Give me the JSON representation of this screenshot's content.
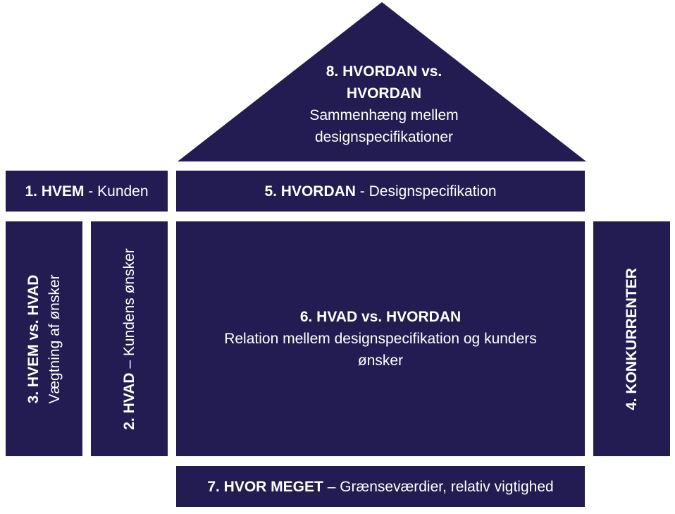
{
  "roof": {
    "number_title": "8. HVORDAN vs.",
    "title_cont": "HVORDAN",
    "desc_line1": "Sammenhæng mellem",
    "desc_line2": "designspecifikationer"
  },
  "box1": {
    "title": "1. HVEM",
    "desc": " - Kunden"
  },
  "box5": {
    "title": "5. HVORDAN",
    "desc": " - Designspecifikation"
  },
  "box3": {
    "title": "3. HVEM vs. HVAD",
    "desc": "Vægtning af ønsker"
  },
  "box2": {
    "title": "2. HVAD",
    "desc": " – Kundens ønsker"
  },
  "box6": {
    "title": "6. HVAD vs. HVORDAN",
    "desc_line1": "Relation mellem designspecifikation og kunders",
    "desc_line2": "ønsker"
  },
  "box4": {
    "title": "4. KONKURRENTER"
  },
  "box7": {
    "title": "7. HVOR MEGET",
    "desc": " – Grænseværdier, relativ vigtighed"
  },
  "colors": {
    "block": "#231c52",
    "text": "#ffffff",
    "background": "#ffffff"
  }
}
